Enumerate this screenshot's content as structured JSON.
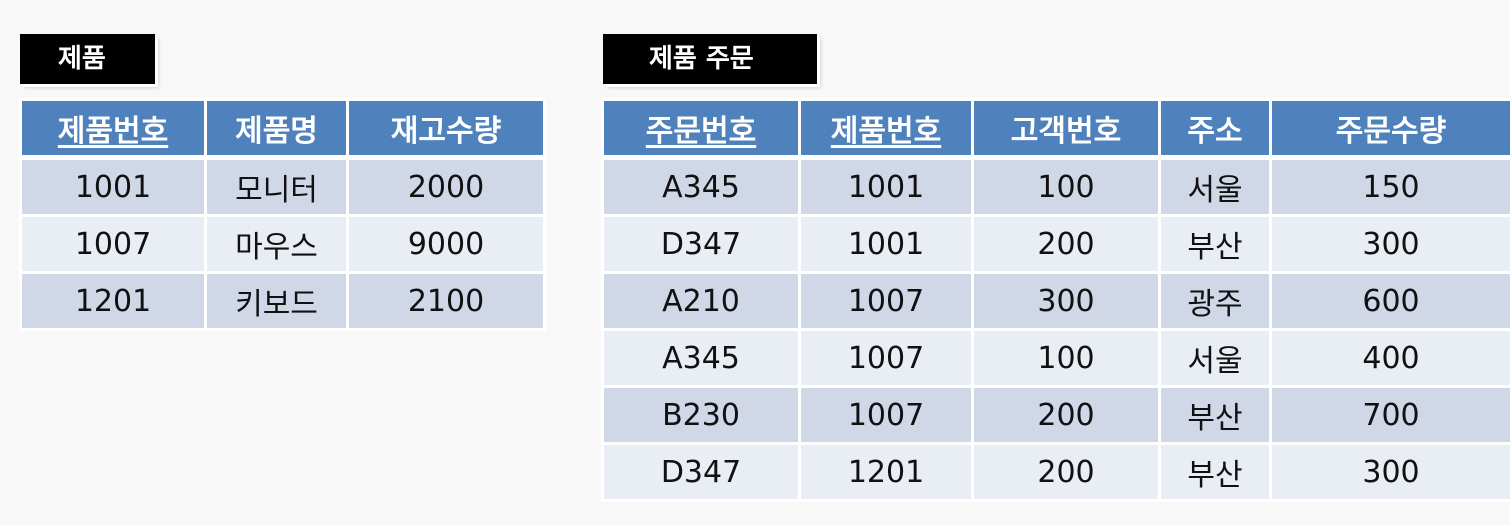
{
  "product": {
    "title": "제품",
    "headers": [
      "제품번호",
      "제품명",
      "재고수량"
    ],
    "rows": [
      [
        "1001",
        "모니터",
        "2000"
      ],
      [
        "1007",
        "마우스",
        "9000"
      ],
      [
        "1201",
        "키보드",
        "2100"
      ]
    ]
  },
  "order": {
    "title": "제품 주문",
    "headers": [
      "주문번호",
      "제품번호",
      "고객번호",
      "주소",
      "주문수량"
    ],
    "rows": [
      [
        "A345",
        "1001",
        "100",
        "서울",
        "150"
      ],
      [
        "D347",
        "1001",
        "200",
        "부산",
        "300"
      ],
      [
        "A210",
        "1007",
        "300",
        "광주",
        "600"
      ],
      [
        "A345",
        "1007",
        "100",
        "서울",
        "400"
      ],
      [
        "B230",
        "1007",
        "200",
        "부산",
        "700"
      ],
      [
        "D347",
        "1201",
        "200",
        "부산",
        "300"
      ]
    ]
  },
  "colors": {
    "header_bg": "#4f81bd",
    "row_odd": "#d0d8e8",
    "row_even": "#e9edf4",
    "title_bg": "#000000"
  }
}
